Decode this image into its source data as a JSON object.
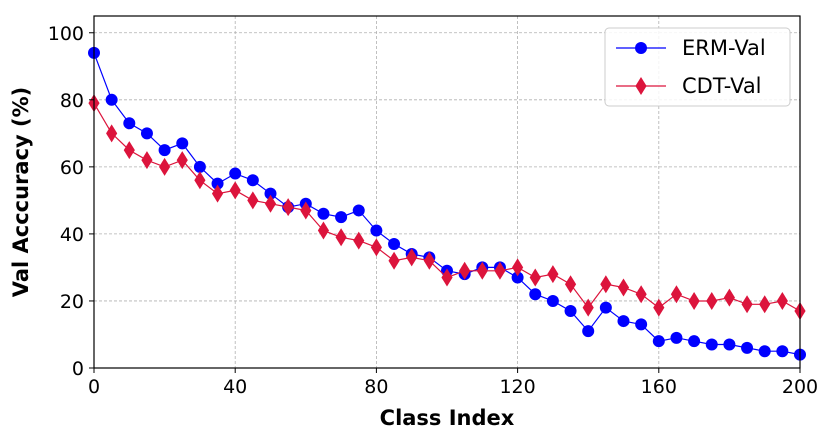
{
  "chart_data": {
    "type": "line",
    "xlabel": "Class Index",
    "ylabel": "Val Acccuracy (%)",
    "xlim": [
      0,
      200
    ],
    "ylim": [
      0,
      105
    ],
    "xticks": [
      0,
      40,
      80,
      120,
      160,
      200
    ],
    "yticks": [
      0,
      20,
      40,
      60,
      80,
      100
    ],
    "grid": true,
    "legend_position": "top-right",
    "x": [
      0,
      5,
      10,
      15,
      20,
      25,
      30,
      35,
      40,
      45,
      50,
      55,
      60,
      65,
      70,
      75,
      80,
      85,
      90,
      95,
      100,
      105,
      110,
      115,
      120,
      125,
      130,
      135,
      140,
      145,
      150,
      155,
      160,
      165,
      170,
      175,
      180,
      185,
      190,
      195,
      200
    ],
    "series": [
      {
        "name": "ERM-Val",
        "color": "#0000ff",
        "marker": "circle",
        "values": [
          94,
          80,
          73,
          70,
          65,
          67,
          60,
          55,
          58,
          56,
          52,
          48,
          49,
          46,
          45,
          47,
          41,
          37,
          34,
          33,
          29,
          28,
          30,
          30,
          27,
          22,
          20,
          17,
          11,
          18,
          14,
          13,
          8,
          9,
          8,
          7,
          7,
          6,
          5,
          5,
          4
        ]
      },
      {
        "name": "CDT-Val",
        "color": "#dc143c",
        "marker": "diamond",
        "values": [
          79,
          70,
          65,
          62,
          60,
          62,
          56,
          52,
          53,
          50,
          49,
          48,
          47,
          41,
          39,
          38,
          36,
          32,
          33,
          32,
          27,
          29,
          29,
          29,
          30,
          27,
          28,
          25,
          18,
          25,
          24,
          22,
          18,
          22,
          20,
          20,
          21,
          19,
          19,
          20,
          17
        ]
      }
    ]
  }
}
